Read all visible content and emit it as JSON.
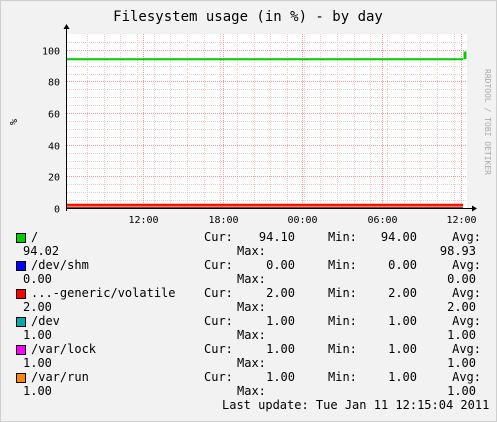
{
  "chart_data": {
    "type": "line",
    "title": "Filesystem usage (in %) - by day",
    "ylabel": "%",
    "watermark": "RRDTOOL / TOBI OETIKER",
    "ylim": [
      0,
      110
    ],
    "yticks": [
      "0",
      "20",
      "40",
      "60",
      "80",
      "100"
    ],
    "xticks": [
      "12:00",
      "18:00",
      "00:00",
      "06:00",
      "12:00"
    ],
    "grid": true,
    "series": [
      {
        "name": "/",
        "color": "#00cc00",
        "values": [
          94.0,
          94.0,
          94.0,
          94.0,
          94.0,
          94.1
        ],
        "peak": 98.93,
        "cur": "94.10",
        "min": "94.00",
        "avg": "94.02",
        "max": "98.93"
      },
      {
        "name": "/dev/shm",
        "color": "#0000ff",
        "values": [
          0,
          0,
          0,
          0,
          0,
          0
        ],
        "cur": "0.00",
        "min": "0.00",
        "avg": "0.00",
        "max": "0.00"
      },
      {
        "name": "...-generic/volatile",
        "color": "#ff0000",
        "values": [
          2,
          2,
          2,
          2,
          2,
          2
        ],
        "cur": "2.00",
        "min": "2.00",
        "avg": "2.00",
        "max": "2.00"
      },
      {
        "name": "/dev",
        "color": "#00aaaa",
        "values": [
          1,
          1,
          1,
          1,
          1,
          1
        ],
        "cur": "1.00",
        "min": "1.00",
        "avg": "1.00",
        "max": "1.00"
      },
      {
        "name": "/var/lock",
        "color": "#ff00ff",
        "values": [
          1,
          1,
          1,
          1,
          1,
          1
        ],
        "cur": "1.00",
        "min": "1.00",
        "avg": "1.00",
        "max": "1.00"
      },
      {
        "name": "/var/run",
        "color": "#ff8800",
        "values": [
          1,
          1,
          1,
          1,
          1,
          1
        ],
        "cur": "1.00",
        "min": "1.00",
        "avg": "1.00",
        "max": "1.00"
      }
    ]
  },
  "labels": {
    "cur": "Cur:",
    "min": "Min:",
    "avg": "Avg:",
    "max": "Max:"
  },
  "footer": "Last update: Tue Jan 11 12:15:04 2011"
}
